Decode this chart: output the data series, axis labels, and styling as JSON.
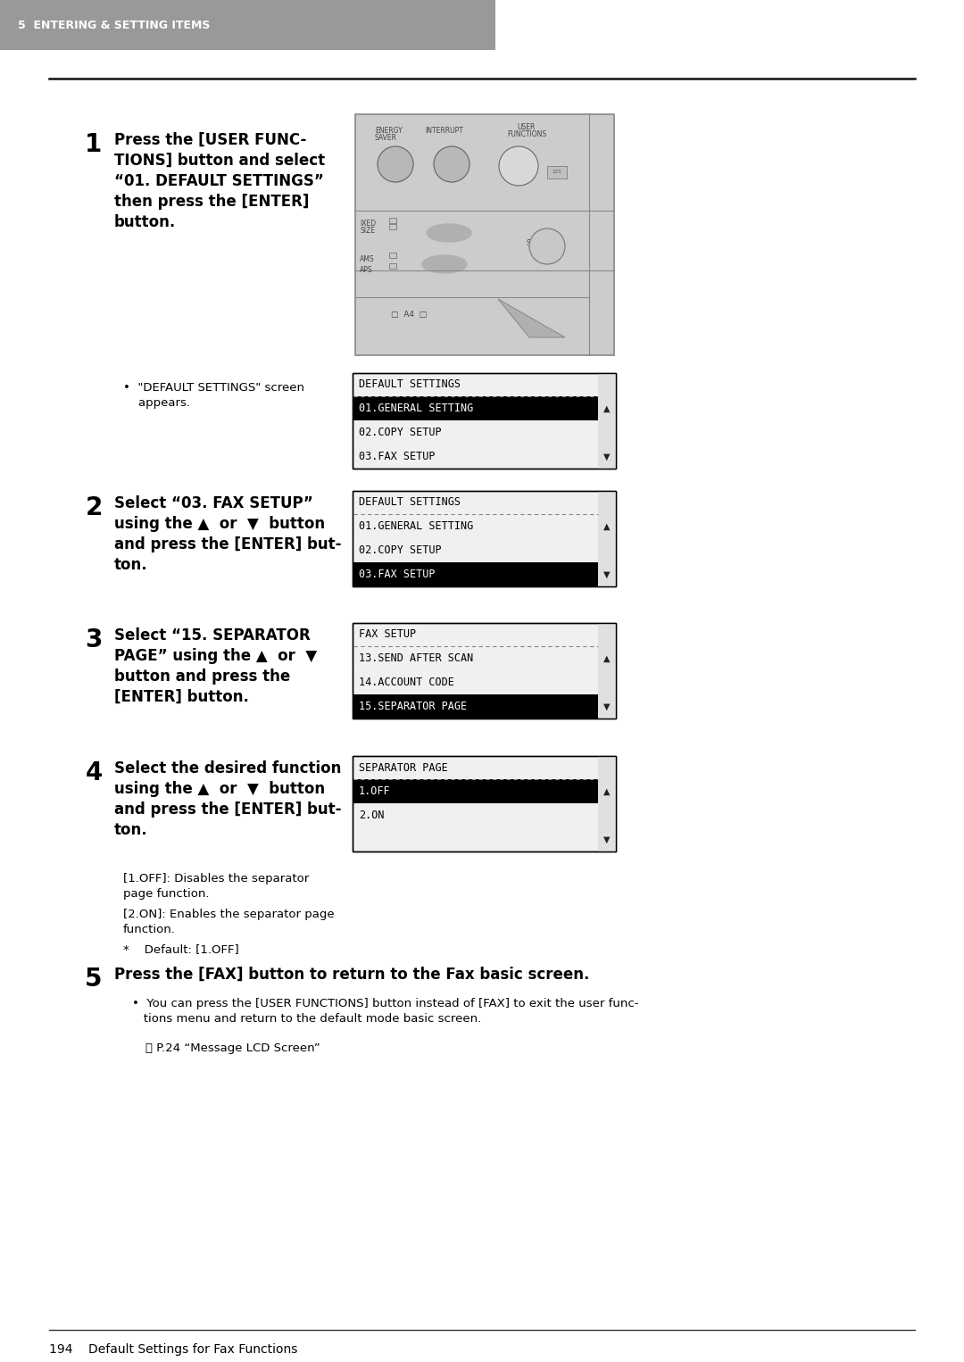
{
  "page_bg": "#ffffff",
  "header_bg": "#999999",
  "header_text": "5  ENTERING & SETTING ITEMS",
  "header_text_color": "#ffffff",
  "footer_text": "194    Default Settings for Fax Functions",
  "step1_num": "1",
  "step1_text": "Press the [USER FUNC-\nTIONS] button and select\n“01. DEFAULT SETTINGS”\nthen press the [ENTER]\nbutton.",
  "step1_bullet": "\"DEFAULT SETTINGS\" screen\nappears.",
  "step2_num": "2",
  "step2_text": "Select “03. FAX SETUP”\nusing the ▲  or  ▼  button\nand press the [ENTER] but-\nton.",
  "step3_num": "3",
  "step3_text": "Select “15. SEPARATOR\nPAGE” using the ▲  or  ▼\nbutton and press the\n[ENTER] button.",
  "step4_num": "4",
  "step4_text": "Select the desired function\nusing the ▲  or  ▼  button\nand press the [ENTER] but-\nton.",
  "step4_bullet1": "[1.OFF]: Disables the separator\npage function.",
  "step4_bullet2": "[2.ON]: Enables the separator page\nfunction.",
  "step4_bullet3": "*    Default: [1.OFF]",
  "step5_num": "5",
  "step5_text": "Press the [FAX] button to return to the Fax basic screen.",
  "step5_bullet1": "You can press the [USER FUNCTIONS] button instead of [FAX] to exit the user func-\ntions menu and return to the default mode basic screen.",
  "step5_bullet2": "⧉ P.24 “Message LCD Screen”",
  "screen1_title": "DEFAULT SETTINGS",
  "screen1_rows": [
    "01.GENERAL SETTING",
    "02.COPY SETUP",
    "03.FAX SETUP"
  ],
  "screen1_highlight": 0,
  "screen2_title": "DEFAULT SETTINGS",
  "screen2_rows": [
    "01.GENERAL SETTING",
    "02.COPY SETUP",
    "03.FAX SETUP"
  ],
  "screen2_highlight": 2,
  "screen3_title": "FAX SETUP",
  "screen3_rows": [
    "13.SEND AFTER SCAN",
    "14.ACCOUNT CODE",
    "15.SEPARATOR PAGE"
  ],
  "screen3_highlight": 2,
  "screen4_title": "SEPARATOR PAGE",
  "screen4_rows": [
    "1.OFF",
    "2.ON",
    ""
  ],
  "screen4_highlight": 0,
  "screen_bg": "#f0f0f0",
  "screen_highlight_bg": "#000000",
  "screen_highlight_fg": "#ffffff",
  "screen_text_fg": "#000000",
  "screen_border": "#000000"
}
